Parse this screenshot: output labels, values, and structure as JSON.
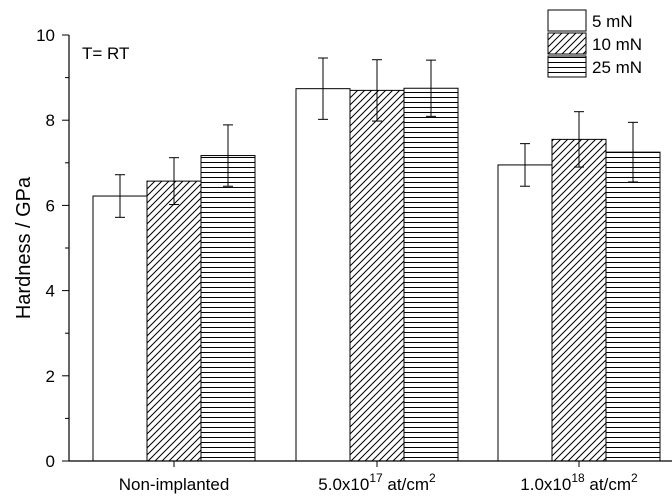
{
  "chart_data": {
    "type": "bar",
    "annotation": "T= RT",
    "ylabel": "Hardness / GPa",
    "xlabel": "",
    "ylim": [
      0,
      10
    ],
    "yticks": [
      "0",
      "2",
      "4",
      "6",
      "8",
      "10"
    ],
    "categories": [
      {
        "base": "Non-implanted",
        "exp": "",
        "unit": ""
      },
      {
        "base": "5.0x10",
        "exp": "17",
        "unit": " at/cm",
        "unit_exp": "2"
      },
      {
        "base": "1.0x10",
        "exp": "18",
        "unit": " at/cm",
        "unit_exp": "2"
      }
    ],
    "series": [
      {
        "name": "5 mN",
        "pattern": "none",
        "values": [
          6.22,
          8.74,
          6.95
        ],
        "errors": [
          0.5,
          0.72,
          0.5
        ]
      },
      {
        "name": "10 mN",
        "pattern": "diagonal",
        "values": [
          6.57,
          8.7,
          7.55
        ],
        "errors": [
          0.55,
          0.72,
          0.65
        ]
      },
      {
        "name": "25 mN",
        "pattern": "horizontal",
        "values": [
          7.17,
          8.75,
          7.25
        ],
        "errors": [
          0.72,
          0.66,
          0.7
        ]
      }
    ],
    "legend_position": "top-right",
    "grid": false
  }
}
